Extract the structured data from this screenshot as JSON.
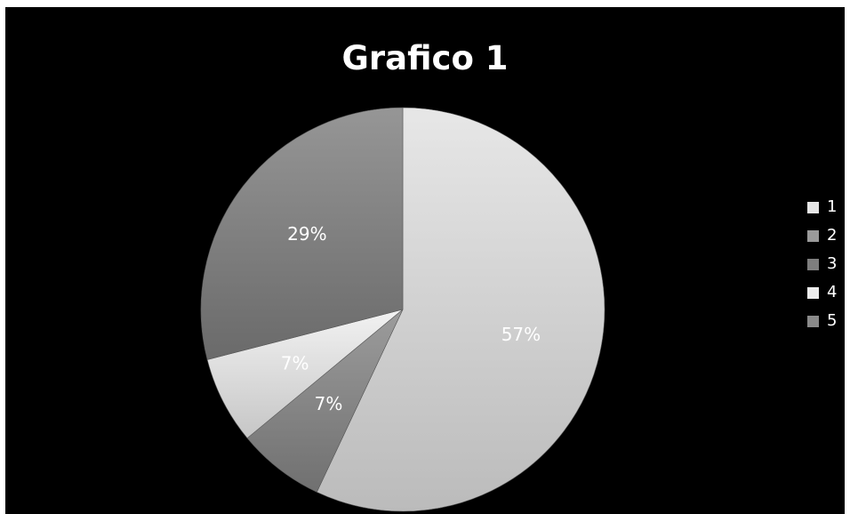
{
  "chart_data": {
    "type": "pie",
    "title": "Grafico 1",
    "legend_position": "right",
    "slices": [
      {
        "name": "1",
        "value": 57,
        "label": "57%",
        "color": "#d5d5d5"
      },
      {
        "name": "2",
        "value": 0,
        "label": "",
        "color": "#9a9a9a"
      },
      {
        "name": "3",
        "value": 7,
        "label": "7%",
        "color": "#8a8a8a"
      },
      {
        "name": "4",
        "value": 7,
        "label": "7%",
        "color": "#e0e0e0"
      },
      {
        "name": "5",
        "value": 29,
        "label": "29%",
        "color": "#848484"
      }
    ]
  },
  "legend": {
    "items": [
      {
        "label": "1",
        "color": "#e6e6e6"
      },
      {
        "label": "2",
        "color": "#9a9a9a"
      },
      {
        "label": "3",
        "color": "#7e7e7e"
      },
      {
        "label": "4",
        "color": "#ededed"
      },
      {
        "label": "5",
        "color": "#8a8a8a"
      }
    ]
  }
}
